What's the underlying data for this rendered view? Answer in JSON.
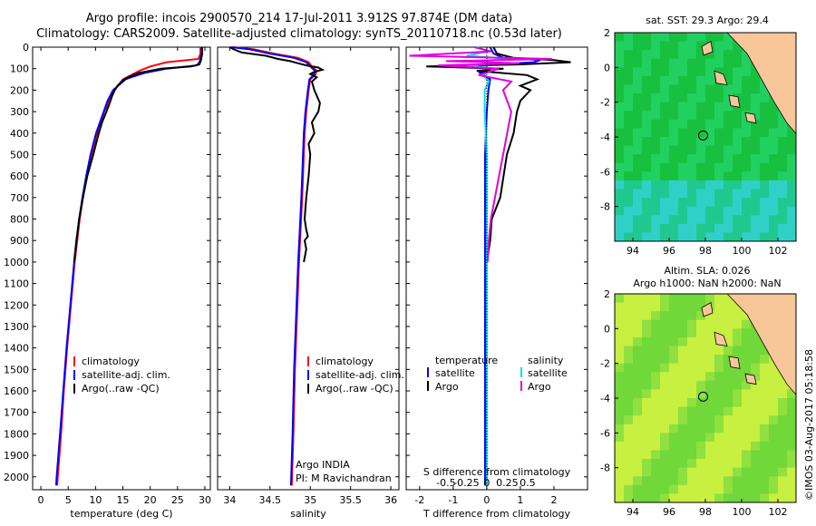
{
  "header": {
    "line1": "Argo profile: incois 2900570_214 17-Jul-2011 3.912S 97.874E (DM data)",
    "line2": "Climatology: CARS2009. Satellite-adjusted climatology: synTS_20110718.nc (0.53d later)"
  },
  "credit": "©IMOS 03-Aug-2017 05:18:58",
  "colors": {
    "climatology": "#ff0000",
    "satellite": "#0000ff",
    "argo": "#000000",
    "sal_sat": "#00e0e0",
    "sal_argo": "#e000e0",
    "land": "#f7c79a",
    "sea_hi": "#10c030",
    "sea_lo": "#30d0d0"
  },
  "chart_data": [
    {
      "type": "line",
      "xlabel": "temperature (deg C)",
      "xlim": [
        -1.5,
        31
      ],
      "xticks": [
        0,
        5,
        10,
        15,
        20,
        25,
        30
      ],
      "ylim": [
        2060,
        0
      ],
      "yticks": [
        0,
        100,
        200,
        300,
        400,
        500,
        600,
        700,
        800,
        900,
        1000,
        1100,
        1200,
        1300,
        1400,
        1500,
        1600,
        1700,
        1800,
        1900,
        2000
      ],
      "legend": [
        "climatology",
        "satellite-adj. clim.",
        "Argo(..raw -QC)"
      ],
      "series": [
        {
          "name": "climatology",
          "color": "#ff0000",
          "depth": [
            0,
            30,
            55,
            70,
            90,
            110,
            130,
            150,
            200,
            250,
            300,
            400,
            500,
            600,
            700,
            800,
            1000,
            1200,
            1400,
            1600,
            1800,
            2000,
            2040
          ],
          "values": [
            29.2,
            29.2,
            28.8,
            23,
            20,
            18,
            16.5,
            15,
            13.5,
            12.5,
            11.6,
            10.3,
            9.3,
            8.4,
            7.7,
            7.1,
            6.2,
            5.5,
            4.8,
            4.2,
            3.7,
            3.1,
            3.0
          ]
        },
        {
          "name": "satellite-adj. clim.",
          "color": "#0000ff",
          "depth": [
            0,
            30,
            55,
            70,
            85,
            100,
            120,
            140,
            150,
            200,
            250,
            300,
            400,
            500,
            600,
            700,
            800,
            1000,
            1200,
            1400,
            1600,
            1800,
            2000,
            2040
          ],
          "values": [
            29.4,
            29.4,
            29.2,
            29,
            28.5,
            23,
            19,
            16.5,
            15.5,
            13.2,
            12.2,
            11.5,
            10.1,
            9.1,
            8.3,
            7.6,
            7.0,
            6.1,
            5.4,
            4.7,
            4.1,
            3.5,
            2.9,
            2.8
          ]
        },
        {
          "name": "Argo(..raw -QC)",
          "color": "#000000",
          "depth": [
            0,
            30,
            60,
            80,
            90,
            100,
            120,
            140,
            155,
            180,
            200,
            230,
            260,
            300,
            350,
            400,
            500,
            600,
            700,
            800,
            900,
            1000
          ],
          "values": [
            29.5,
            29.5,
            29.3,
            29.0,
            27.5,
            22,
            18,
            16,
            15,
            14,
            13.5,
            13.0,
            12.6,
            12.0,
            11.2,
            10.6,
            9.6,
            8.5,
            7.7,
            7.0,
            6.5,
            6.1
          ]
        }
      ]
    },
    {
      "type": "line",
      "xlabel": "salinity",
      "xlim": [
        33.85,
        36.1
      ],
      "xticks": [
        34,
        34.5,
        35,
        35.5,
        36
      ],
      "ylim": [
        2060,
        0
      ],
      "legend": [
        "climatology",
        "satellite-adj. clim.",
        "Argo(..raw -QC)"
      ],
      "annotation": [
        "Argo INDIA",
        "PI: M Ravichandran"
      ],
      "series": [
        {
          "name": "climatology",
          "color": "#ff0000",
          "depth": [
            0,
            10,
            30,
            50,
            70,
            90,
            110,
            130,
            150,
            200,
            300,
            400,
            500,
            700,
            1000,
            1200,
            1500,
            1800,
            2040
          ],
          "values": [
            34.05,
            34.3,
            34.55,
            34.85,
            34.98,
            35.02,
            35.08,
            35.06,
            35.0,
            34.98,
            34.95,
            34.93,
            34.92,
            34.9,
            34.86,
            34.84,
            34.81,
            34.79,
            34.77
          ]
        },
        {
          "name": "satellite-adj. clim.",
          "color": "#0000ff",
          "depth": [
            0,
            10,
            30,
            50,
            70,
            90,
            110,
            130,
            150,
            200,
            300,
            400,
            500,
            700,
            1000,
            1200,
            1500,
            1800,
            2040
          ],
          "values": [
            34.02,
            34.25,
            34.5,
            34.8,
            34.95,
            35.0,
            35.06,
            35.04,
            34.99,
            34.97,
            34.94,
            34.92,
            34.91,
            34.89,
            34.85,
            34.83,
            34.8,
            34.78,
            34.76
          ]
        },
        {
          "name": "Argo(..raw -QC)",
          "color": "#000000",
          "depth": [
            0,
            10,
            25,
            40,
            55,
            65,
            75,
            85,
            95,
            105,
            115,
            125,
            140,
            160,
            200,
            260,
            300,
            350,
            400,
            450,
            500,
            600,
            700,
            800,
            850,
            880,
            900,
            940,
            1000
          ],
          "values": [
            34.0,
            34.05,
            34.15,
            34.45,
            34.6,
            34.75,
            34.85,
            34.95,
            35.1,
            35.15,
            35.05,
            35.0,
            35.08,
            35.02,
            35.05,
            35.12,
            35.1,
            35.02,
            35.05,
            34.98,
            35.0,
            34.98,
            34.95,
            34.93,
            34.95,
            34.97,
            34.93,
            34.95,
            34.92
          ]
        }
      ]
    },
    {
      "type": "line",
      "xlabel": "T difference from climatology",
      "toplabel": "S difference from climatology",
      "xlim": [
        -2.4,
        3.0
      ],
      "xticks": [
        -2,
        -1,
        0,
        1,
        2
      ],
      "sticks": [
        -0.5,
        -0.25,
        0,
        0.25,
        0.5
      ],
      "ylim": [
        2060,
        0
      ],
      "legend_temperature": [
        "temperature",
        "satellite",
        "Argo"
      ],
      "legend_salinity": [
        "salinity",
        "satellite",
        "Argo"
      ],
      "series": [
        {
          "name": "T satellite",
          "color": "#0000ff",
          "depth": [
            0,
            30,
            50,
            60,
            70,
            80,
            90,
            100,
            120,
            150,
            200,
            300,
            500,
            800,
            1000,
            1500,
            2040
          ],
          "values": [
            0.1,
            0.2,
            0.5,
            1.6,
            1.4,
            0.3,
            -1.2,
            0.4,
            -0.2,
            0.1,
            0.05,
            0.0,
            -0.05,
            -0.05,
            -0.05,
            -0.05,
            -0.05
          ]
        },
        {
          "name": "T Argo",
          "color": "#000000",
          "depth": [
            0,
            30,
            50,
            60,
            70,
            80,
            90,
            100,
            110,
            130,
            150,
            180,
            200,
            250,
            300,
            400,
            500,
            600,
            700,
            800,
            900,
            1000
          ],
          "values": [
            0.2,
            0.3,
            0.8,
            2.0,
            2.5,
            1.0,
            -1.8,
            0.5,
            -0.3,
            1.2,
            1.5,
            1.0,
            1.3,
            1.0,
            0.9,
            0.8,
            0.6,
            0.5,
            0.4,
            0.15,
            0.1,
            0.0
          ]
        },
        {
          "name": "S satellite",
          "color": "#00e0e0",
          "depth": [
            0,
            20,
            40,
            55,
            65,
            75,
            85,
            100,
            130,
            160,
            200,
            300,
            500,
            800,
            1000,
            1500,
            2040
          ],
          "values": [
            -0.25,
            0.05,
            -0.5,
            0.6,
            -0.2,
            0.4,
            -0.5,
            0.2,
            -0.1,
            0.05,
            -0.05,
            -0.05,
            0.0,
            0.0,
            0.0,
            0.0,
            0.0
          ]
        },
        {
          "name": "S Argo",
          "color": "#e000e0",
          "depth": [
            0,
            20,
            40,
            55,
            65,
            75,
            85,
            100,
            130,
            160,
            200,
            300,
            400,
            500,
            600,
            700,
            800,
            900,
            1000
          ],
          "values": [
            -0.3,
            0.1,
            -1.9,
            1.6,
            -1.0,
            0.8,
            -1.2,
            0.3,
            -0.2,
            0.6,
            0.4,
            0.6,
            0.5,
            0.4,
            0.3,
            0.2,
            0.1,
            0.05,
            0.02
          ]
        }
      ]
    },
    {
      "type": "heatmap",
      "title": "sat. SST: 29.3  Argo: 29.4",
      "xlim": [
        93,
        103
      ],
      "ylim": [
        -10,
        2
      ],
      "xticks": [
        94,
        96,
        98,
        100,
        102
      ],
      "yticks": [
        2,
        0,
        -2,
        -4,
        -6,
        -8
      ],
      "marker": [
        97.874,
        -3.912
      ]
    },
    {
      "type": "heatmap",
      "title": "Altim. SLA: 0.026",
      "subtitle": "Argo h1000: NaN  h2000: NaN",
      "xlim": [
        93,
        103
      ],
      "ylim": [
        -10,
        2
      ],
      "xticks": [
        94,
        96,
        98,
        100,
        102
      ],
      "yticks": [
        2,
        0,
        -2,
        -4,
        -6,
        -8
      ],
      "marker": [
        97.874,
        -3.912
      ]
    }
  ]
}
